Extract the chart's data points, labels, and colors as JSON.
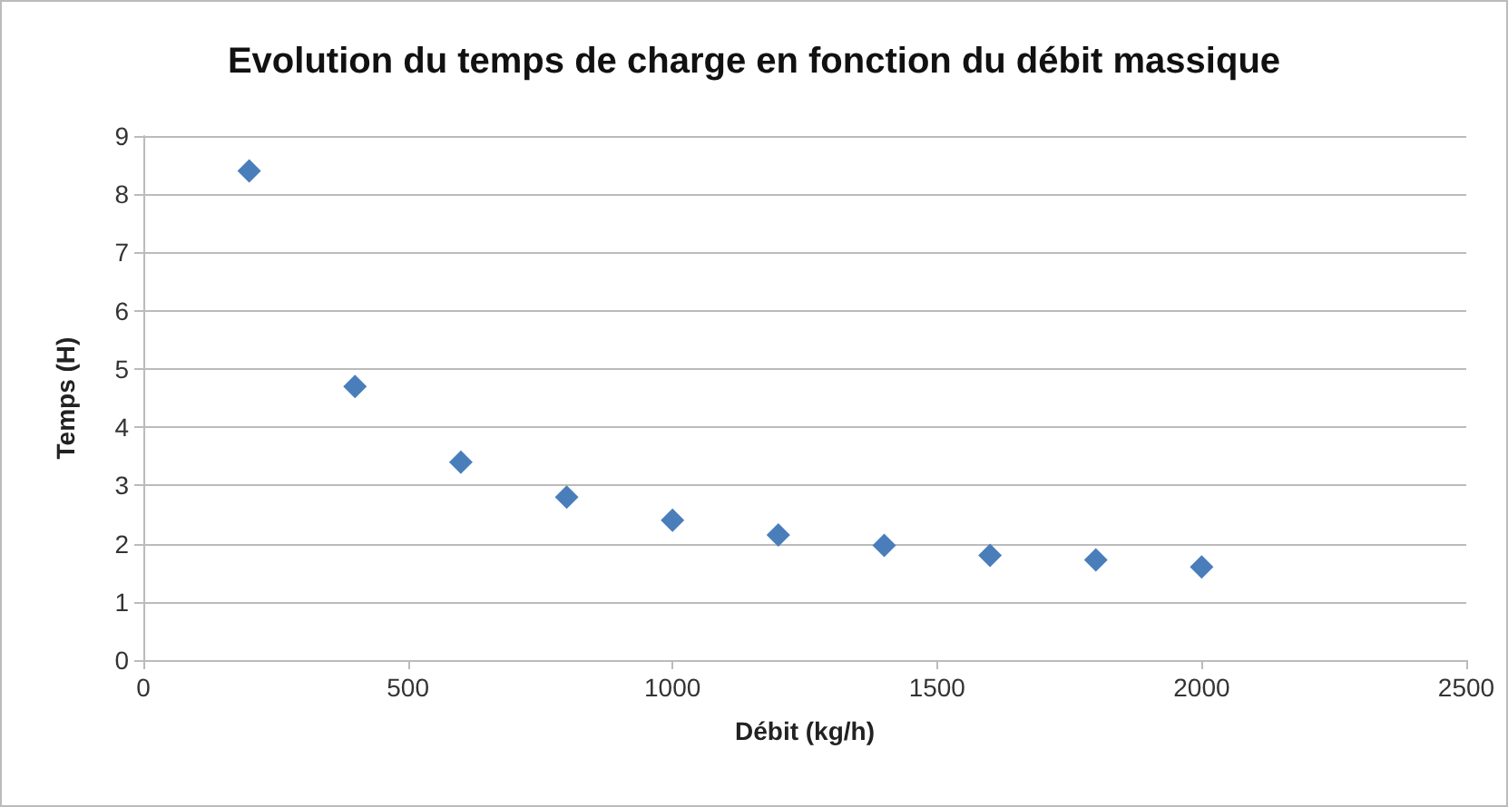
{
  "chart_data": {
    "type": "scatter",
    "title": "Evolution du temps de charge en fonction du débit massique",
    "xlabel": "Débit (kg/h)",
    "ylabel": "Temps (H)",
    "x": [
      200,
      400,
      600,
      800,
      1000,
      1200,
      1400,
      1600,
      1800,
      2000
    ],
    "series": [
      {
        "color": "#4a7ebb",
        "values": [
          8.4,
          4.7,
          3.4,
          2.8,
          2.4,
          2.15,
          1.97,
          1.8,
          1.72,
          1.6
        ]
      }
    ],
    "xlim": [
      0,
      2500
    ],
    "xticks": [
      0,
      500,
      1000,
      1500,
      2000,
      2500
    ],
    "ylim": [
      0,
      9
    ],
    "yticks": [
      0,
      1,
      2,
      3,
      4,
      5,
      6,
      7,
      8,
      9
    ],
    "grid": "y",
    "marker": "diamond"
  }
}
